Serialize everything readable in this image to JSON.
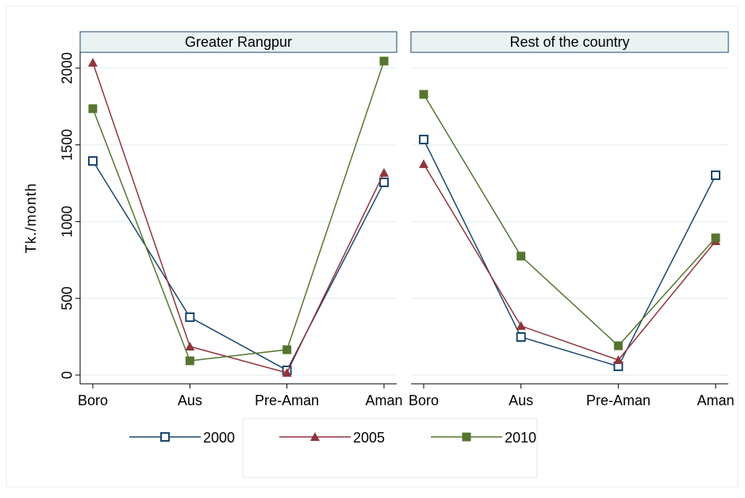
{
  "chart_data": [
    {
      "type": "line",
      "title": "Greater Rangpur",
      "ylabel": "Tk./month",
      "categories": [
        "Boro",
        "Aus",
        "Pre-Aman",
        "Aman"
      ],
      "ylim": [
        -57,
        2103
      ],
      "yticks": [
        0,
        500,
        1000,
        1500,
        2000
      ],
      "grid": true,
      "series": [
        {
          "name": "2000",
          "color": "#1a476f",
          "marker": "hollow-square",
          "values": [
            1395,
            377,
            31,
            1256
          ]
        },
        {
          "name": "2005",
          "color": "#90353b",
          "marker": "triangle",
          "values": [
            2036,
            186,
            15,
            1318
          ]
        },
        {
          "name": "2010",
          "color": "#55752f",
          "marker": "square",
          "values": [
            1736,
            93,
            165,
            2046
          ]
        }
      ]
    },
    {
      "type": "line",
      "title": "Rest of the country",
      "categories": [
        "Boro",
        "Aus",
        "Pre-Aman",
        "Aman"
      ],
      "ylim": [
        -57,
        2103
      ],
      "yticks": [
        0,
        500,
        1000,
        1500,
        2000
      ],
      "grid": true,
      "series": [
        {
          "name": "2000",
          "color": "#1a476f",
          "marker": "hollow-square",
          "values": [
            1535,
            248,
            57,
            1302
          ]
        },
        {
          "name": "2005",
          "color": "#90353b",
          "marker": "triangle",
          "values": [
            1375,
            320,
            98,
            873
          ]
        },
        {
          "name": "2010",
          "color": "#55752f",
          "marker": "square",
          "values": [
            1829,
            775,
            191,
            894
          ]
        }
      ]
    }
  ]
}
